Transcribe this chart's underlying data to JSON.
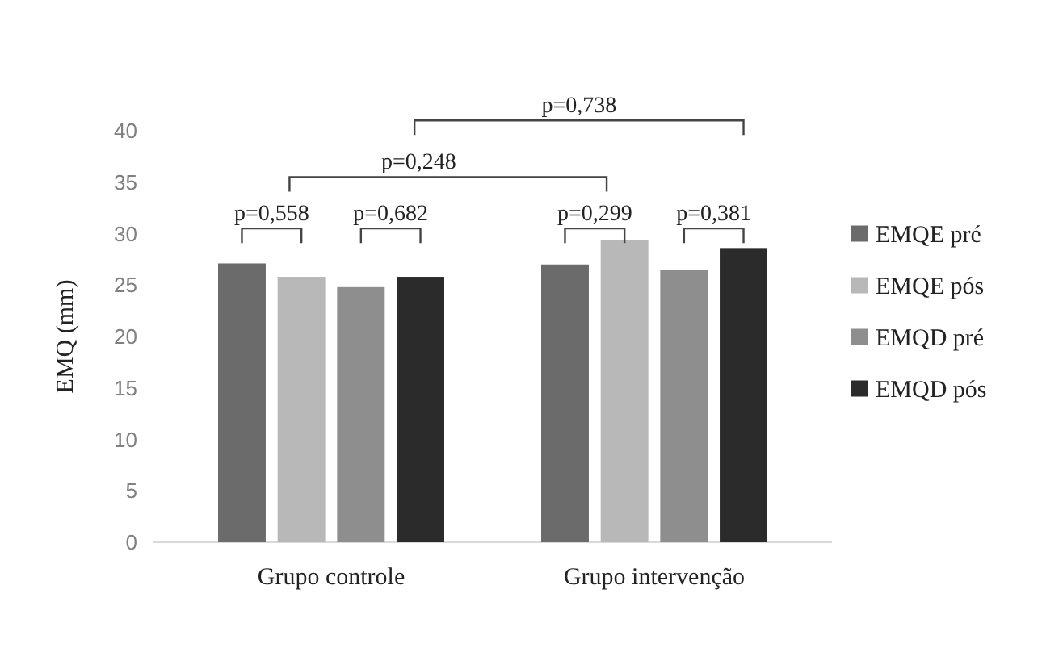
{
  "chart_data": {
    "type": "bar",
    "ylabel": "EMQ (mm)",
    "categories": [
      "Grupo controle",
      "Grupo intervenção"
    ],
    "series": [
      {
        "name": "EMQE pré",
        "color": "#6b6b6b",
        "values": [
          27.1,
          27.0
        ]
      },
      {
        "name": "EMQE pós",
        "color": "#b8b8b8",
        "values": [
          25.8,
          29.4
        ]
      },
      {
        "name": "EMQD pré",
        "color": "#8e8e8e",
        "values": [
          24.8,
          26.5
        ]
      },
      {
        "name": "EMQD pós",
        "color": "#2b2b2b",
        "values": [
          25.8,
          28.6
        ]
      }
    ],
    "ylim": [
      0,
      40
    ],
    "yticks": [
      0,
      5,
      10,
      15,
      20,
      25,
      30,
      35,
      40
    ],
    "grid": false,
    "legend": "right",
    "annotations": [
      "p=0,558",
      "p=0,682",
      "p=0,299",
      "p=0,381",
      "p=0,248",
      "p=0,738"
    ]
  }
}
